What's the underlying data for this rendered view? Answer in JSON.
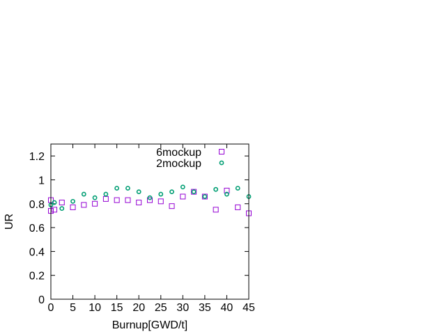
{
  "chart_data": {
    "type": "scatter",
    "xlabel": "Burnup[GWD/t]",
    "ylabel": "UR",
    "xlim": [
      0,
      45
    ],
    "ylim": [
      0,
      1.3
    ],
    "xticks": [
      "0",
      "5",
      "10",
      "15",
      "20",
      "25",
      "30",
      "35",
      "40",
      "45"
    ],
    "yticks": [
      "0",
      "0.2",
      "0.4",
      "0.6",
      "0.8",
      "1",
      "1.2"
    ],
    "grid": false,
    "legend_position": "top-right",
    "series": [
      {
        "name": "6mockup",
        "marker": "square",
        "color": "#9400d3",
        "points": [
          [
            0,
            0.74
          ],
          [
            0,
            0.83
          ],
          [
            0.8,
            0.75
          ],
          [
            2.5,
            0.81
          ],
          [
            5,
            0.77
          ],
          [
            7.5,
            0.79
          ],
          [
            10,
            0.8
          ],
          [
            12.5,
            0.84
          ],
          [
            15,
            0.83
          ],
          [
            17.5,
            0.83
          ],
          [
            20,
            0.81
          ],
          [
            22.5,
            0.83
          ],
          [
            25,
            0.82
          ],
          [
            27.5,
            0.78
          ],
          [
            30,
            0.86
          ],
          [
            32.5,
            0.9
          ],
          [
            35,
            0.86
          ],
          [
            37.5,
            0.75
          ],
          [
            40,
            0.91
          ],
          [
            42.5,
            0.77
          ],
          [
            45,
            0.72
          ]
        ]
      },
      {
        "name": "2mockup",
        "marker": "circle",
        "color": "#009e73",
        "points": [
          [
            0,
            0.79
          ],
          [
            0.8,
            0.81
          ],
          [
            2.5,
            0.76
          ],
          [
            5,
            0.82
          ],
          [
            7.5,
            0.88
          ],
          [
            10,
            0.85
          ],
          [
            12.5,
            0.88
          ],
          [
            15,
            0.93
          ],
          [
            17.5,
            0.93
          ],
          [
            20,
            0.9
          ],
          [
            22.5,
            0.85
          ],
          [
            25,
            0.88
          ],
          [
            27.5,
            0.9
          ],
          [
            30,
            0.94
          ],
          [
            32.5,
            0.9
          ],
          [
            35,
            0.86
          ],
          [
            37.5,
            0.92
          ],
          [
            40,
            0.88
          ],
          [
            42.5,
            0.93
          ],
          [
            45,
            0.86
          ]
        ]
      }
    ]
  }
}
